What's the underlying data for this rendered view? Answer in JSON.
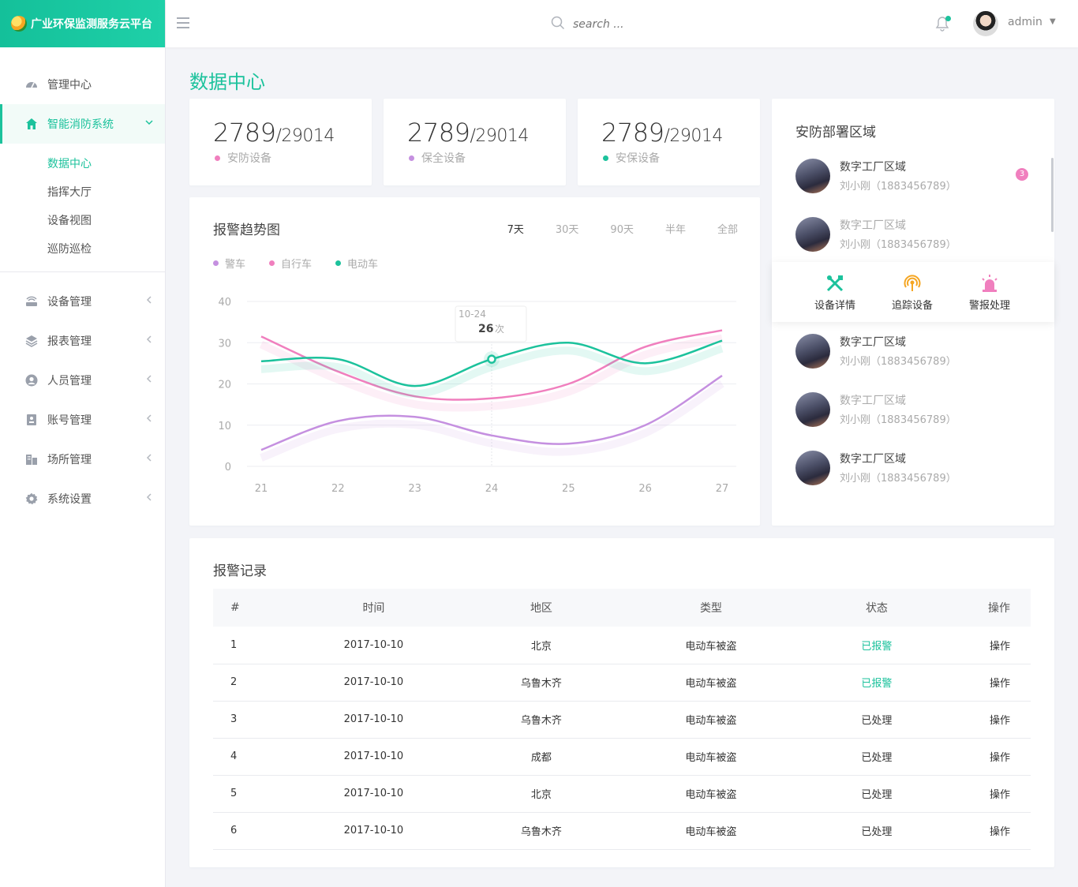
{
  "app": {
    "title": "广业环保监测服务云平台"
  },
  "header": {
    "search_placeholder": "search ...",
    "user_name": "admin"
  },
  "sidebar": {
    "items": [
      {
        "label": "管理中心",
        "icon": "dashboard-icon"
      },
      {
        "label": "智能消防系统",
        "icon": "home-icon"
      },
      {
        "label": "设备管理",
        "icon": "router-icon"
      },
      {
        "label": "报表管理",
        "icon": "layers-icon"
      },
      {
        "label": "人员管理",
        "icon": "user-icon"
      },
      {
        "label": "账号管理",
        "icon": "contact-card-icon"
      },
      {
        "label": "场所管理",
        "icon": "building-icon"
      },
      {
        "label": "系统设置",
        "icon": "gear-icon"
      }
    ],
    "sub_items": [
      "数据中心",
      "指挥大厅",
      "设备视图",
      "巡防巡检"
    ]
  },
  "page": {
    "title": "数据中心"
  },
  "stats": [
    {
      "value": "2789",
      "total": "/29014",
      "label": "安防设备",
      "color": "#f07fbe"
    },
    {
      "value": "2789",
      "total": "/29014",
      "label": "保全设备",
      "color": "#c590e0"
    },
    {
      "value": "2789",
      "total": "/29014",
      "label": "安保设备",
      "color": "#1cc29c"
    }
  ],
  "trend": {
    "title": "报警趋势图",
    "ranges": [
      "7天",
      "30天",
      "90天",
      "半年",
      "全部"
    ],
    "tooltip": {
      "date": "10-24",
      "value": "26",
      "unit": "次"
    }
  },
  "chart_data": {
    "type": "line",
    "x": [
      21,
      22,
      23,
      24,
      25,
      26,
      27
    ],
    "ylim": [
      0,
      40
    ],
    "yticks": [
      0,
      10,
      20,
      30,
      40
    ],
    "series": [
      {
        "name": "警车",
        "color": "#c590e0",
        "values": [
          4,
          11,
          12,
          7.5,
          5.5,
          10,
          22
        ]
      },
      {
        "name": "自行车",
        "color": "#f07fbe",
        "values": [
          31.5,
          23,
          17,
          16.5,
          20,
          29,
          33
        ]
      },
      {
        "name": "电动车",
        "color": "#1cc29c",
        "values": [
          25.5,
          26,
          19.5,
          26,
          30,
          25,
          30.5
        ]
      }
    ]
  },
  "areas": {
    "title": "安防部署区域",
    "badge": "3",
    "items": [
      {
        "name": "数字工厂区域",
        "contact": "刘小刚（1883456789）"
      },
      {
        "name": "数字工厂区域",
        "contact": "刘小刚（1883456789）"
      },
      {
        "name": "数字工厂区域",
        "contact": "刘小刚（1883456789）"
      },
      {
        "name": "数字工厂区域",
        "contact": "刘小刚（1883456789）"
      },
      {
        "name": "数字工厂区域",
        "contact": "刘小刚（1883456789）"
      }
    ],
    "actions": [
      "设备详情",
      "追踪设备",
      "警报处理"
    ]
  },
  "records": {
    "title": "报警记录",
    "columns": [
      "#",
      "时间",
      "地区",
      "类型",
      "状态",
      "操作"
    ],
    "rows": [
      [
        "1",
        "2017-10-10",
        "北京",
        "电动车被盗",
        "已报警",
        "操作"
      ],
      [
        "2",
        "2017-10-10",
        "乌鲁木齐",
        "电动车被盗",
        "已报警",
        "操作"
      ],
      [
        "3",
        "2017-10-10",
        "乌鲁木齐",
        "电动车被盗",
        "已处理",
        "操作"
      ],
      [
        "4",
        "2017-10-10",
        "成都",
        "电动车被盗",
        "已处理",
        "操作"
      ],
      [
        "5",
        "2017-10-10",
        "北京",
        "电动车被盗",
        "已处理",
        "操作"
      ],
      [
        "6",
        "2017-10-10",
        "乌鲁木齐",
        "电动车被盗",
        "已处理",
        "操作"
      ]
    ]
  }
}
